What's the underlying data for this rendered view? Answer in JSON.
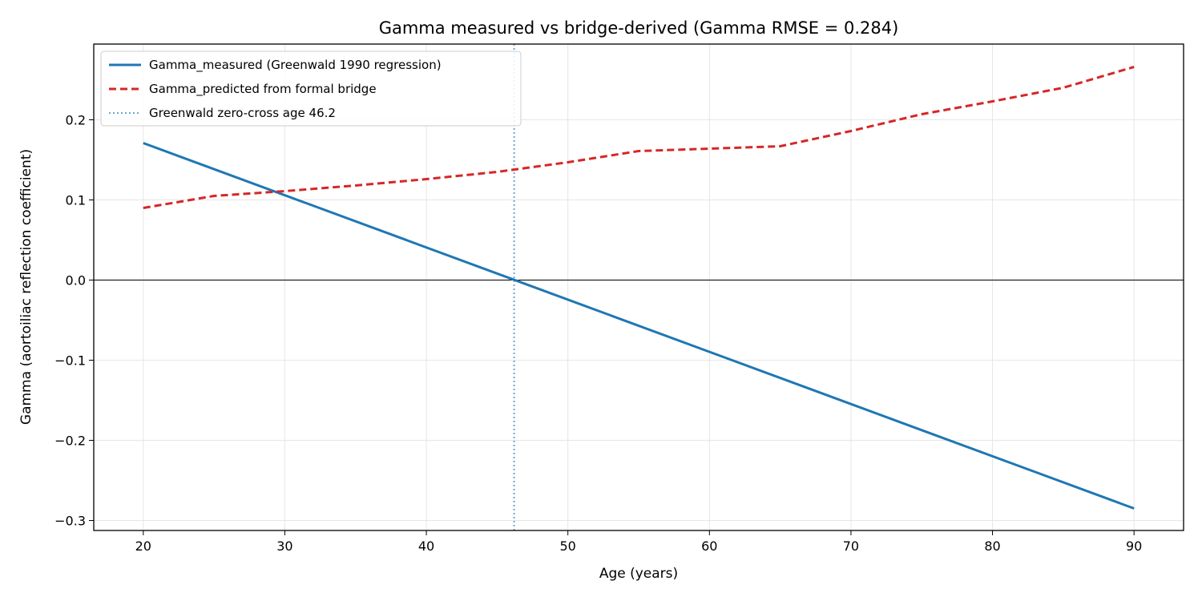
{
  "chart_data": {
    "type": "line",
    "title": "Gamma measured vs bridge-derived (Gamma RMSE = 0.284)",
    "xlabel": "Age (years)",
    "ylabel": "Gamma (aortoiliac reflection coefficient)",
    "xlim": [
      16.5,
      93.5
    ],
    "ylim": [
      -0.3125,
      0.2945
    ],
    "xticks": [
      20,
      30,
      40,
      50,
      60,
      70,
      80,
      90
    ],
    "xtick_labels": [
      "20",
      "30",
      "40",
      "50",
      "60",
      "70",
      "80",
      "90"
    ],
    "yticks": [
      -0.3,
      -0.2,
      -0.1,
      0.0,
      0.1,
      0.2
    ],
    "ytick_labels": [
      "−0.3",
      "−0.2",
      "−0.1",
      "0.0",
      "0.1",
      "0.2"
    ],
    "grid": true,
    "legend_position": "top-left",
    "series": [
      {
        "name": "Gamma_measured (Greenwald 1990 regression)",
        "style": "solid",
        "color": "#1f77b4",
        "x": [
          20,
          90
        ],
        "y": [
          0.171,
          -0.285
        ]
      },
      {
        "name": "Gamma_predicted from formal bridge",
        "style": "dashed",
        "color": "#d62728",
        "x": [
          20,
          25,
          30,
          35,
          40,
          45,
          50,
          55,
          60,
          65,
          70,
          75,
          80,
          85,
          90
        ],
        "y": [
          0.09,
          0.105,
          0.111,
          0.118,
          0.126,
          0.135,
          0.147,
          0.161,
          0.164,
          0.167,
          0.186,
          0.207,
          0.223,
          0.24,
          0.266
        ]
      }
    ],
    "reference_lines": [
      {
        "name": "Greenwald zero-cross age 46.2",
        "orientation": "vertical",
        "x": 46.2,
        "style": "dotted",
        "color": "#6fa7cf"
      },
      {
        "orientation": "horizontal",
        "y": 0.0,
        "style": "solid",
        "color": "#000000"
      }
    ]
  }
}
